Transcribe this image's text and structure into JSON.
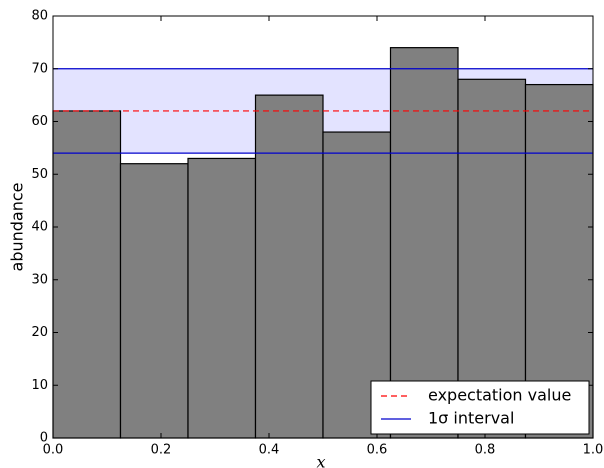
{
  "chart_data": {
    "type": "histogram",
    "xlabel": "x",
    "ylabel": "abundance",
    "bins": [
      0,
      0.125,
      0.25,
      0.375,
      0.5,
      0.625,
      0.75,
      0.875,
      1.0
    ],
    "values": [
      62,
      52,
      53,
      65,
      58,
      74,
      68,
      67
    ],
    "color": "#808080",
    "expectation": {
      "name": "expectation value",
      "value": 62,
      "color": "#ff0000"
    },
    "interval": {
      "name": "1σ interval",
      "low": 54,
      "high": 70,
      "color": "#0000cc",
      "fill": "#e3e3ff"
    },
    "xlim": [
      0,
      1.0
    ],
    "xticks": [
      {
        "value": 0,
        "label": "0.0"
      },
      {
        "value": 0.2,
        "label": "0.2"
      },
      {
        "value": 0.4,
        "label": "0.4"
      },
      {
        "value": 0.6,
        "label": "0.6"
      },
      {
        "value": 0.8,
        "label": "0.8"
      },
      {
        "value": 1.0,
        "label": "1.0"
      }
    ],
    "ylim": [
      0,
      80
    ],
    "yticks": [
      0,
      10,
      20,
      30,
      40,
      50,
      60,
      70,
      80
    ],
    "legend": "lower right"
  }
}
